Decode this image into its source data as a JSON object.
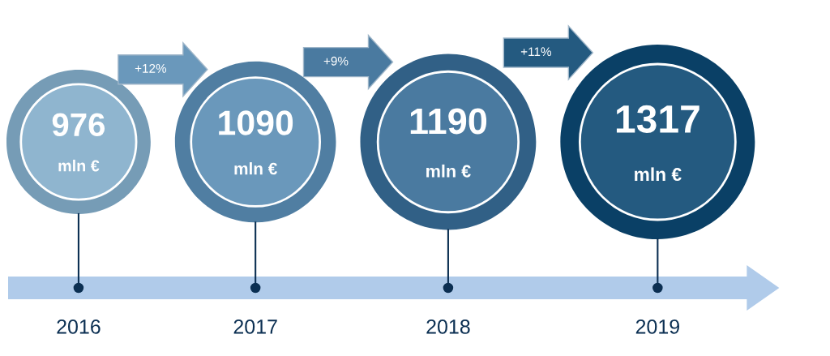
{
  "chart_data": {
    "type": "other",
    "categories": [
      "2016",
      "2017",
      "2018",
      "2019"
    ],
    "values": [
      976,
      1090,
      1190,
      1317
    ],
    "value_labels": [
      "976\nmln €",
      "1090\nmln €",
      "1190\nmln €",
      "1317\nmln €"
    ],
    "colors": [
      "#8fb5cf",
      "#6a98bb",
      "#4a7aa0",
      "#245a80"
    ],
    "annotations": [
      "+12%",
      "+9%",
      "+11%"
    ]
  }
}
